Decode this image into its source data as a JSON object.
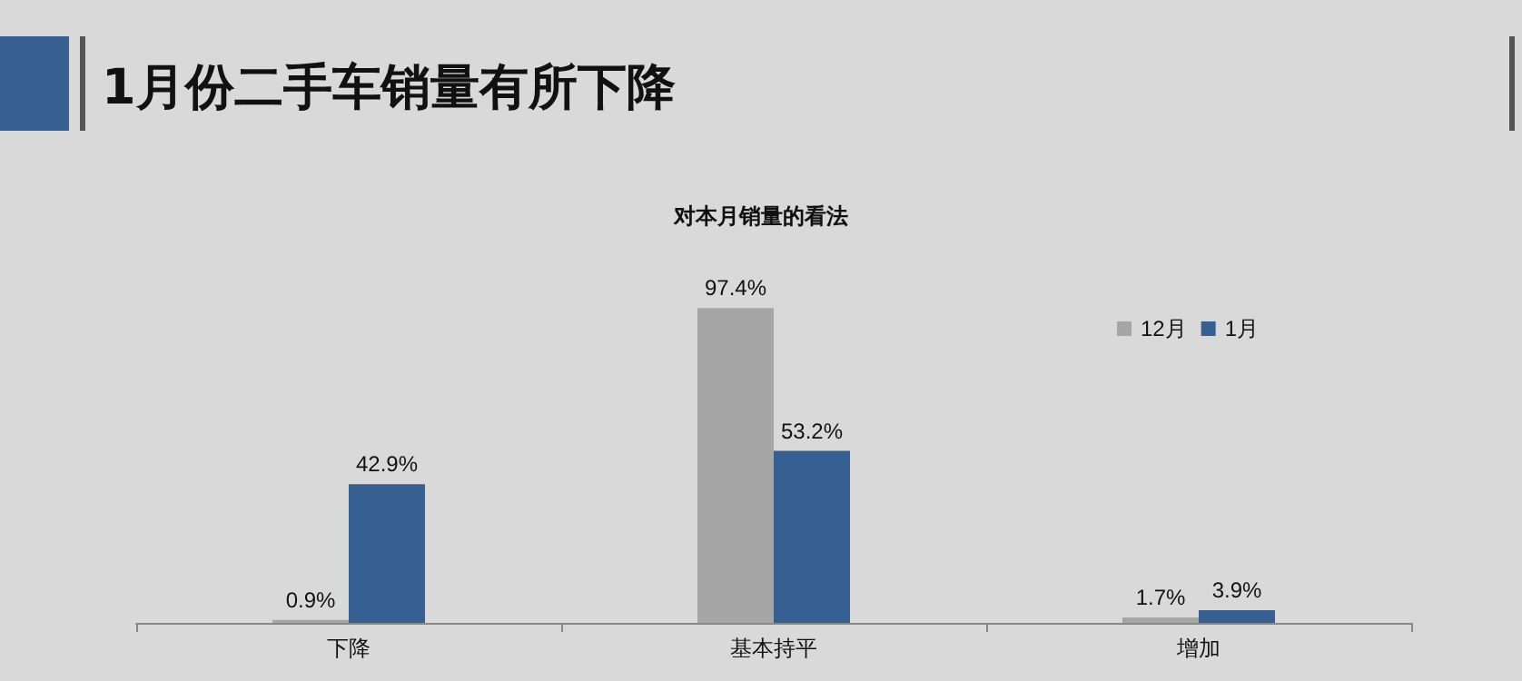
{
  "chart_data": {
    "type": "bar",
    "title": "1月份二手车销量有所下降",
    "subtitle": "对本月销量的看法",
    "categories": [
      "下降",
      "基本持平",
      "增加"
    ],
    "series": [
      {
        "name": "12月",
        "color": "#a6a6a6",
        "values": [
          0.9,
          97.4,
          1.7
        ],
        "value_labels": [
          "0.9%",
          "97.4%",
          "1.7%"
        ]
      },
      {
        "name": "1月",
        "color": "#376092",
        "values": [
          42.9,
          53.2,
          3.9
        ],
        "value_labels": [
          "42.9%",
          "53.2%",
          "3.9%"
        ]
      }
    ],
    "legend": "top right",
    "grid": false
  }
}
